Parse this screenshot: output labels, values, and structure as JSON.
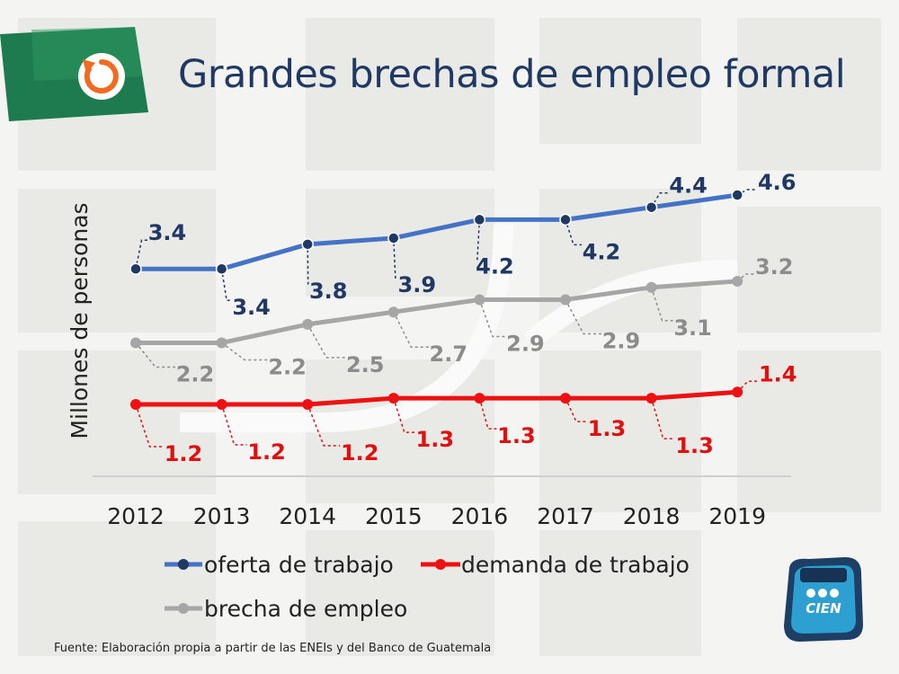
{
  "page": {
    "title": "Grandes brechas de empleo formal",
    "source": "Fuente: Elaboración propia a partir de las ENEIs y del Banco de Guatemala",
    "logo_text": "CIEN"
  },
  "chart_data": {
    "type": "line",
    "title": "Grandes brechas de empleo formal",
    "xlabel": "",
    "ylabel": "Millones de personas",
    "categories": [
      "2012",
      "2013",
      "2014",
      "2015",
      "2016",
      "2017",
      "2018",
      "2019"
    ],
    "ylim": [
      0,
      5.2
    ],
    "grid": false,
    "legend": "bottom",
    "series": [
      {
        "name": "oferta de trabajo",
        "color": "#4472c4",
        "label_color": "#1f3864",
        "values": [
          3.4,
          3.4,
          3.8,
          3.9,
          4.2,
          4.2,
          4.4,
          4.6
        ],
        "labels": [
          "3.4",
          "3.4",
          "3.8",
          "3.9",
          "4.2",
          "4.2",
          "4.4",
          "4.6"
        ]
      },
      {
        "name": "demanda de trabajo",
        "color": "#ee1111",
        "label_color": "#e01010",
        "values": [
          1.2,
          1.2,
          1.2,
          1.3,
          1.3,
          1.3,
          1.3,
          1.4
        ],
        "labels": [
          "1.2",
          "1.2",
          "1.2",
          "1.3",
          "1.3",
          "1.3",
          "1.3",
          "1.4"
        ]
      },
      {
        "name": "brecha de empleo",
        "color": "#a6a6a6",
        "label_color": "#8c8c8c",
        "values": [
          2.2,
          2.2,
          2.5,
          2.7,
          2.9,
          2.9,
          3.1,
          3.2
        ],
        "labels": [
          "2.2",
          "2.2",
          "2.5",
          "2.7",
          "2.9",
          "2.9",
          "3.1",
          "3.2"
        ]
      }
    ]
  }
}
